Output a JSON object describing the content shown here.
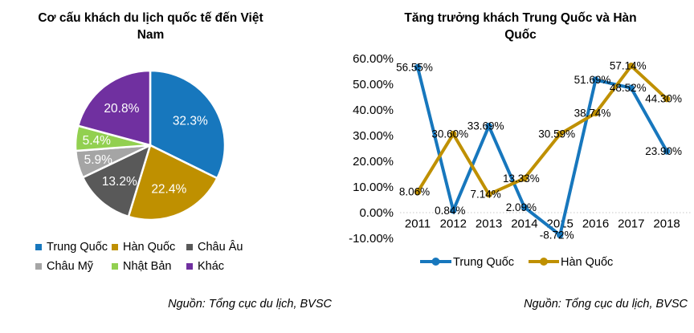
{
  "chart_data": [
    {
      "id": "pie-international-visitor-mix",
      "type": "pie",
      "title": "Cơ cấu khách du lịch quốc tế đến Việt Nam",
      "title_lines": [
        "Cơ cấu khách du lịch quốc tế đến Việt",
        "Nam"
      ],
      "categories": [
        "Trung Quốc",
        "Hàn Quốc",
        "Châu Âu",
        "Châu Mỹ",
        "Nhật Bản",
        "Khác"
      ],
      "values": [
        32.3,
        22.4,
        13.2,
        5.9,
        5.4,
        20.8
      ],
      "value_labels": [
        "32.3%",
        "22.4%",
        "13.2%",
        "5.9%",
        "5.4%",
        "20.8%"
      ],
      "colors": [
        "#1777BD",
        "#BF9000",
        "#595959",
        "#A5A5A5",
        "#92D050",
        "#7030A0"
      ],
      "label_color": "#FFFFFF",
      "legend_position": "bottom",
      "source": "Nguồn: Tổng cục du lịch, BVSC"
    },
    {
      "id": "line-china-korea-growth",
      "type": "line",
      "title": "Tăng trưởng khách Trung Quốc và Hàn Quốc",
      "title_lines": [
        "Tăng trưởng khách Trung Quốc và Hàn",
        "Quốc"
      ],
      "x": [
        "2011",
        "2012",
        "2013",
        "2014",
        "2015",
        "2016",
        "2017",
        "2018"
      ],
      "series": [
        {
          "name": "Trung Quốc",
          "color": "#1777BD",
          "values": [
            56.55,
            0.84,
            33.69,
            2.09,
            -8.72,
            51.69,
            48.52,
            23.9
          ],
          "labels": [
            "56.55%",
            "0.84%",
            "33.69%",
            "2.09%",
            "-8.72%",
            "51.69%",
            "48.52%",
            "23.90%"
          ]
        },
        {
          "name": "Hàn Quốc",
          "color": "#BF9000",
          "values": [
            8.06,
            30.6,
            7.14,
            13.33,
            30.59,
            38.74,
            57.14,
            44.3
          ],
          "labels": [
            "8.06%",
            "30.60%",
            "7.14%",
            "13.33%",
            "30.59%",
            "38.74%",
            "57.14%",
            "44.30%"
          ]
        }
      ],
      "y_axis": {
        "min": -10,
        "max": 60,
        "step": 10,
        "tick_labels": [
          "60.00%",
          "50.00%",
          "40.00%",
          "30.00%",
          "20.00%",
          "10.00%",
          "0.00%",
          "-10.00%"
        ]
      },
      "gridlines": "dotted line at 0.00% only",
      "gridline_color": "#D2D2D2",
      "legend_position": "bottom",
      "source": "Nguồn: Tổng cục du lịch, BVSC"
    }
  ]
}
